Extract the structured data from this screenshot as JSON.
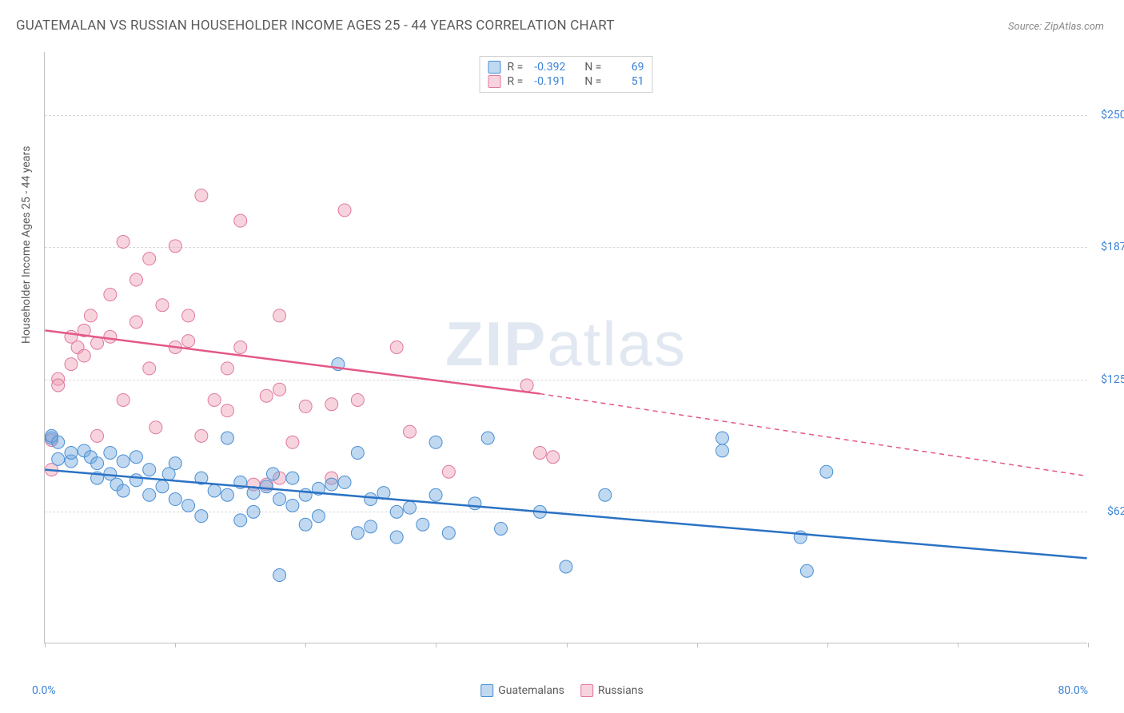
{
  "title": "GUATEMALAN VS RUSSIAN HOUSEHOLDER INCOME AGES 25 - 44 YEARS CORRELATION CHART",
  "source": "Source: ZipAtlas.com",
  "watermark_bold": "ZIP",
  "watermark_light": "atlas",
  "y_axis_label": "Householder Income Ages 25 - 44 years",
  "x_min_label": "0.0%",
  "x_max_label": "80.0%",
  "bottom_legend": {
    "series1_label": "Guatemalans",
    "series2_label": "Russians"
  },
  "top_legend": {
    "row1": {
      "r_label": "R =",
      "r_val": "-0.392",
      "n_label": "N =",
      "n_val": "69"
    },
    "row2": {
      "r_label": "R =",
      "r_val": "-0.191",
      "n_label": "N =",
      "n_val": "51"
    }
  },
  "chart": {
    "type": "scatter",
    "xlim": [
      0,
      80
    ],
    "ylim": [
      0,
      280000
    ],
    "y_gridlines": [
      62500,
      125000,
      187500,
      250000
    ],
    "y_tick_labels": [
      "$62,500",
      "$125,000",
      "$187,500",
      "$250,000"
    ],
    "x_ticks": [
      0,
      10,
      20,
      30,
      40,
      50,
      60,
      70,
      80
    ],
    "background_color": "#ffffff",
    "grid_color": "#d8d8d8",
    "axis_color": "#c0c0c0",
    "series": {
      "guatemalan": {
        "color_fill": "rgba(116, 169, 222, 0.45)",
        "color_stroke": "#4a8fd4",
        "trend_color": "#2a72c4",
        "trend_width": 2.5,
        "trend_x1": 0,
        "trend_y1": 82000,
        "trend_x2": 80,
        "trend_y2": 40000,
        "points": [
          [
            0.5,
            97000
          ],
          [
            0.5,
            98000
          ],
          [
            1,
            95000
          ],
          [
            1,
            87000
          ],
          [
            2,
            86000
          ],
          [
            2,
            90000
          ],
          [
            3,
            91000
          ],
          [
            3.5,
            88000
          ],
          [
            4,
            85000
          ],
          [
            4,
            78000
          ],
          [
            5,
            90000
          ],
          [
            5,
            80000
          ],
          [
            5.5,
            75000
          ],
          [
            6,
            86000
          ],
          [
            6,
            72000
          ],
          [
            7,
            88000
          ],
          [
            7,
            77000
          ],
          [
            8,
            70000
          ],
          [
            8,
            82000
          ],
          [
            9,
            74000
          ],
          [
            9.5,
            80000
          ],
          [
            10,
            68000
          ],
          [
            10,
            85000
          ],
          [
            11,
            65000
          ],
          [
            12,
            78000
          ],
          [
            12,
            60000
          ],
          [
            13,
            72000
          ],
          [
            14,
            97000
          ],
          [
            14,
            70000
          ],
          [
            15,
            58000
          ],
          [
            15,
            76000
          ],
          [
            16,
            71000
          ],
          [
            16,
            62000
          ],
          [
            17,
            74000
          ],
          [
            17.5,
            80000
          ],
          [
            18,
            32000
          ],
          [
            18,
            68000
          ],
          [
            19,
            65000
          ],
          [
            19,
            78000
          ],
          [
            20,
            56000
          ],
          [
            20,
            70000
          ],
          [
            21,
            73000
          ],
          [
            21,
            60000
          ],
          [
            22,
            75000
          ],
          [
            22.5,
            132000
          ],
          [
            23,
            76000
          ],
          [
            24,
            90000
          ],
          [
            24,
            52000
          ],
          [
            25,
            68000
          ],
          [
            25,
            55000
          ],
          [
            26,
            71000
          ],
          [
            27,
            62000
          ],
          [
            27,
            50000
          ],
          [
            28,
            64000
          ],
          [
            29,
            56000
          ],
          [
            30,
            70000
          ],
          [
            30,
            95000
          ],
          [
            31,
            52000
          ],
          [
            33,
            66000
          ],
          [
            34,
            97000
          ],
          [
            35,
            54000
          ],
          [
            38,
            62000
          ],
          [
            40,
            36000
          ],
          [
            43,
            70000
          ],
          [
            52,
            91000
          ],
          [
            52,
            97000
          ],
          [
            58,
            50000
          ],
          [
            58.5,
            34000
          ],
          [
            60,
            81000
          ]
        ]
      },
      "russian": {
        "color_fill": "rgba(238, 159, 180, 0.45)",
        "color_stroke": "#e077a0",
        "trend_color": "#e35887",
        "trend_width": 2.5,
        "trend_solid_x1": 0,
        "trend_solid_y1": 148000,
        "trend_solid_x2": 38,
        "trend_solid_y2": 118000,
        "trend_dash_x2": 80,
        "trend_dash_y2": 79000,
        "points": [
          [
            0.5,
            82000
          ],
          [
            0.5,
            96000
          ],
          [
            1,
            125000
          ],
          [
            1,
            122000
          ],
          [
            2,
            145000
          ],
          [
            2,
            132000
          ],
          [
            2.5,
            140000
          ],
          [
            3,
            148000
          ],
          [
            3,
            136000
          ],
          [
            3.5,
            155000
          ],
          [
            4,
            98000
          ],
          [
            4,
            142000
          ],
          [
            5,
            165000
          ],
          [
            5,
            145000
          ],
          [
            6,
            115000
          ],
          [
            6,
            190000
          ],
          [
            7,
            152000
          ],
          [
            7,
            172000
          ],
          [
            8,
            130000
          ],
          [
            8,
            182000
          ],
          [
            8.5,
            102000
          ],
          [
            9,
            160000
          ],
          [
            10,
            188000
          ],
          [
            10,
            140000
          ],
          [
            11,
            143000
          ],
          [
            11,
            155000
          ],
          [
            12,
            212000
          ],
          [
            12,
            98000
          ],
          [
            13,
            115000
          ],
          [
            14,
            110000
          ],
          [
            14,
            130000
          ],
          [
            15,
            140000
          ],
          [
            15,
            200000
          ],
          [
            16,
            75000
          ],
          [
            17,
            75000
          ],
          [
            17,
            117000
          ],
          [
            18,
            78000
          ],
          [
            18,
            120000
          ],
          [
            18,
            155000
          ],
          [
            19,
            95000
          ],
          [
            20,
            112000
          ],
          [
            22,
            113000
          ],
          [
            22,
            78000
          ],
          [
            23,
            205000
          ],
          [
            24,
            115000
          ],
          [
            27,
            140000
          ],
          [
            28,
            100000
          ],
          [
            31,
            81000
          ],
          [
            37,
            122000
          ],
          [
            38,
            90000
          ],
          [
            39,
            88000
          ]
        ]
      }
    }
  }
}
